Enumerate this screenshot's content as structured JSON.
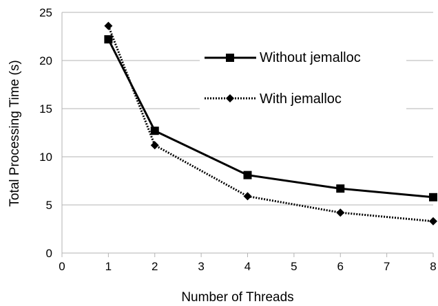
{
  "chart_data": {
    "type": "line",
    "xlabel": "Number of Threads",
    "ylabel": "Total Processing Time (s)",
    "xlim": [
      0,
      8
    ],
    "ylim": [
      0,
      25
    ],
    "x_ticks": [
      "0",
      "1",
      "2",
      "3",
      "4",
      "5",
      "6",
      "7",
      "8"
    ],
    "y_ticks": [
      "0",
      "5",
      "10",
      "15",
      "20",
      "25"
    ],
    "grid": "horizontal",
    "legend_position": "top-right",
    "series": [
      {
        "name": "Without jemalloc",
        "marker": "square",
        "line_style": "solid",
        "color": "#000000",
        "x": [
          1,
          2,
          4,
          6,
          8
        ],
        "y": [
          22.2,
          12.7,
          8.1,
          6.7,
          5.8
        ]
      },
      {
        "name": "With jemalloc",
        "marker": "diamond",
        "line_style": "dotted",
        "color": "#000000",
        "x": [
          1,
          2,
          4,
          6,
          8
        ],
        "y": [
          23.6,
          11.2,
          5.9,
          4.2,
          3.3
        ]
      }
    ]
  }
}
